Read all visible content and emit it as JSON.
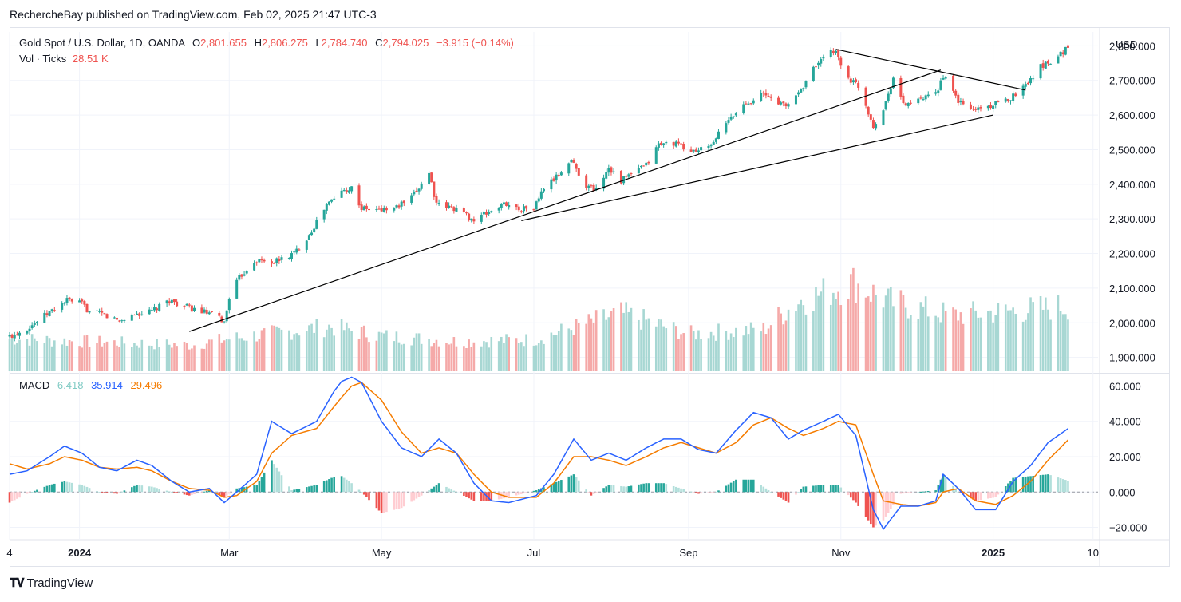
{
  "header": {
    "text": "RechercheBay published on TradingView.com, Feb 02, 2025 21:47 UTC-3"
  },
  "legend": {
    "symbol": "Gold Spot / U.S. Dollar, 1D, OANDA",
    "o_label": "O",
    "o_val": "2,801.655",
    "h_label": "H",
    "h_val": "2,806.275",
    "l_label": "L",
    "l_val": "2,784.740",
    "c_label": "C",
    "c_val": "2,794.025",
    "change": "−3.915 (−0.14%)",
    "vol_label": "Vol · Ticks",
    "vol_val": "28.51 K",
    "macd_label": "MACD",
    "macd_hist": "6.418",
    "macd_line": "35.914",
    "macd_signal": "29.496"
  },
  "currency": "USD",
  "footer": {
    "brand": "TradingView",
    "logo": "tradingview-logo-icon"
  },
  "colors": {
    "up": "#26a69a",
    "down": "#ef5350",
    "macd": "#2962ff",
    "signal": "#f57c00",
    "trendline": "#000000"
  },
  "chart_data": [
    {
      "type": "candlestick",
      "title": "Gold Spot / U.S. Dollar, 1D, OANDA",
      "ylim": [
        1860,
        2840
      ],
      "y_ticks": [
        "2,800.000",
        "2,700.000",
        "2,600.000",
        "2,500.000",
        "2,400.000",
        "2,300.000",
        "2,200.000",
        "2,100.000",
        "2,000.000",
        "1,900.000"
      ],
      "y_tick_values": [
        2800,
        2700,
        2600,
        2500,
        2400,
        2300,
        2200,
        2100,
        2000,
        1900
      ],
      "x_ticks": [
        "4",
        "2024",
        "Mar",
        "May",
        "Jul",
        "Sep",
        "Nov",
        "2025",
        "10"
      ],
      "x_tick_dates": [
        "2023-12-04",
        "2024-01-01",
        "2024-03-01",
        "2024-05-01",
        "2024-07-01",
        "2024-09-01",
        "2024-11-01",
        "2025-01-01",
        "2025-02-10"
      ],
      "x_range": [
        "2023-12-04",
        "2025-02-12"
      ],
      "close_points": [
        [
          "2023-12-04",
          1960
        ],
        [
          "2023-12-11",
          1985
        ],
        [
          "2023-12-18",
          2020
        ],
        [
          "2023-12-27",
          2065
        ],
        [
          "2024-01-02",
          2055
        ],
        [
          "2024-01-05",
          2030
        ],
        [
          "2024-01-10",
          2025
        ],
        [
          "2024-01-17",
          2005
        ],
        [
          "2024-01-23",
          2025
        ],
        [
          "2024-01-29",
          2030
        ],
        [
          "2024-02-02",
          2045
        ],
        [
          "2024-02-06",
          2065
        ],
        [
          "2024-02-13",
          2045
        ],
        [
          "2024-02-20",
          2030
        ],
        [
          "2024-02-26",
          2015
        ],
        [
          "2024-02-28",
          2000
        ],
        [
          "2024-03-01",
          2075
        ],
        [
          "2024-03-05",
          2130
        ],
        [
          "2024-03-11",
          2180
        ],
        [
          "2024-03-19",
          2175
        ],
        [
          "2024-03-27",
          2200
        ],
        [
          "2024-04-02",
          2255
        ],
        [
          "2024-04-09",
          2340
        ],
        [
          "2024-04-15",
          2380
        ],
        [
          "2024-04-19",
          2390
        ],
        [
          "2024-04-23",
          2330
        ],
        [
          "2024-04-29",
          2325
        ],
        [
          "2024-05-06",
          2330
        ],
        [
          "2024-05-13",
          2360
        ],
        [
          "2024-05-20",
          2435
        ],
        [
          "2024-05-23",
          2340
        ],
        [
          "2024-05-31",
          2330
        ],
        [
          "2024-06-07",
          2295
        ],
        [
          "2024-06-13",
          2320
        ],
        [
          "2024-06-20",
          2345
        ],
        [
          "2024-06-24",
          2330
        ],
        [
          "2024-07-01",
          2330
        ],
        [
          "2024-07-05",
          2390
        ],
        [
          "2024-07-10",
          2420
        ],
        [
          "2024-07-16",
          2470
        ],
        [
          "2024-07-22",
          2395
        ],
        [
          "2024-07-26",
          2385
        ],
        [
          "2024-07-31",
          2450
        ],
        [
          "2024-08-05",
          2410
        ],
        [
          "2024-08-09",
          2430
        ],
        [
          "2024-08-15",
          2455
        ],
        [
          "2024-08-20",
          2515
        ],
        [
          "2024-08-26",
          2520
        ],
        [
          "2024-09-02",
          2495
        ],
        [
          "2024-09-09",
          2505
        ],
        [
          "2024-09-16",
          2575
        ],
        [
          "2024-09-23",
          2630
        ],
        [
          "2024-09-30",
          2660
        ],
        [
          "2024-10-04",
          2650
        ],
        [
          "2024-10-10",
          2625
        ],
        [
          "2024-10-16",
          2675
        ],
        [
          "2024-10-22",
          2745
        ],
        [
          "2024-10-30",
          2790
        ],
        [
          "2024-11-01",
          2740
        ],
        [
          "2024-11-05",
          2700
        ],
        [
          "2024-11-08",
          2685
        ],
        [
          "2024-11-14",
          2570
        ],
        [
          "2024-11-18",
          2615
        ],
        [
          "2024-11-22",
          2710
        ],
        [
          "2024-11-26",
          2630
        ],
        [
          "2024-12-02",
          2640
        ],
        [
          "2024-12-09",
          2660
        ],
        [
          "2024-12-12",
          2715
        ],
        [
          "2024-12-18",
          2640
        ],
        [
          "2024-12-23",
          2615
        ],
        [
          "2024-12-30",
          2625
        ],
        [
          "2025-01-06",
          2640
        ],
        [
          "2025-01-13",
          2680
        ],
        [
          "2025-01-20",
          2740
        ],
        [
          "2025-01-27",
          2770
        ],
        [
          "2025-01-31",
          2798
        ]
      ],
      "last": {
        "open": 2801.655,
        "high": 2806.275,
        "low": 2784.74,
        "close": 2794.025
      },
      "annotations": [
        {
          "kind": "trendline",
          "from": [
            "2024-02-14",
            1975
          ],
          "to": [
            "2024-12-11",
            2730
          ]
        },
        {
          "kind": "trendline",
          "from": [
            "2024-06-26",
            2295
          ],
          "to": [
            "2025-01-01",
            2600
          ]
        },
        {
          "kind": "trendline",
          "from": [
            "2024-10-30",
            2790
          ],
          "to": [
            "2025-01-14",
            2672
          ]
        }
      ]
    },
    {
      "type": "bar",
      "title": "Vol · Ticks",
      "last_value": "28.51 K",
      "note": "relative heights",
      "segments": [
        [
          "2023-12-04",
          0.35
        ],
        [
          "2024-01-01",
          0.32
        ],
        [
          "2024-02-15",
          0.28
        ],
        [
          "2024-03-01",
          0.35
        ],
        [
          "2024-04-10",
          0.48
        ],
        [
          "2024-05-01",
          0.38
        ],
        [
          "2024-06-01",
          0.32
        ],
        [
          "2024-07-01",
          0.34
        ],
        [
          "2024-08-05",
          0.62
        ],
        [
          "2024-09-01",
          0.4
        ],
        [
          "2024-10-01",
          0.45
        ],
        [
          "2024-10-15",
          0.75
        ],
        [
          "2024-11-06",
          0.95
        ],
        [
          "2024-11-20",
          0.75
        ],
        [
          "2024-12-15",
          0.6
        ],
        [
          "2025-01-15",
          0.66
        ],
        [
          "2025-02-01",
          0.7
        ]
      ]
    },
    {
      "type": "line",
      "title": "MACD",
      "ylim": [
        -27,
        67
      ],
      "y_ticks": [
        "60.000",
        "40.000",
        "20.000",
        "0.000",
        "−20.000"
      ],
      "y_tick_values": [
        60,
        40,
        20,
        0,
        -20
      ],
      "series": [
        {
          "name": "MACD",
          "points": [
            [
              "2023-12-04",
              10
            ],
            [
              "2023-12-11",
              12
            ],
            [
              "2023-12-20",
              20
            ],
            [
              "2023-12-26",
              26
            ],
            [
              "2024-01-02",
              22
            ],
            [
              "2024-01-09",
              14
            ],
            [
              "2024-01-16",
              12
            ],
            [
              "2024-01-24",
              18
            ],
            [
              "2024-01-30",
              15
            ],
            [
              "2024-02-07",
              6
            ],
            [
              "2024-02-14",
              0
            ],
            [
              "2024-02-22",
              2
            ],
            [
              "2024-02-28",
              -6
            ],
            [
              "2024-03-04",
              0
            ],
            [
              "2024-03-12",
              10
            ],
            [
              "2024-03-18",
              40
            ],
            [
              "2024-03-26",
              33
            ],
            [
              "2024-04-05",
              40
            ],
            [
              "2024-04-14",
              62
            ],
            [
              "2024-04-19",
              65
            ],
            [
              "2024-04-23",
              62
            ],
            [
              "2024-05-01",
              40
            ],
            [
              "2024-05-09",
              25
            ],
            [
              "2024-05-17",
              20
            ],
            [
              "2024-05-24",
              30
            ],
            [
              "2024-05-31",
              22
            ],
            [
              "2024-06-07",
              5
            ],
            [
              "2024-06-14",
              -5
            ],
            [
              "2024-06-21",
              -6
            ],
            [
              "2024-07-02",
              -2
            ],
            [
              "2024-07-09",
              10
            ],
            [
              "2024-07-17",
              30
            ],
            [
              "2024-07-24",
              18
            ],
            [
              "2024-07-31",
              22
            ],
            [
              "2024-08-07",
              18
            ],
            [
              "2024-08-15",
              25
            ],
            [
              "2024-08-22",
              30
            ],
            [
              "2024-08-29",
              30
            ],
            [
              "2024-09-05",
              24
            ],
            [
              "2024-09-12",
              22
            ],
            [
              "2024-09-20",
              35
            ],
            [
              "2024-09-27",
              45
            ],
            [
              "2024-10-04",
              42
            ],
            [
              "2024-10-11",
              30
            ],
            [
              "2024-10-17",
              35
            ],
            [
              "2024-10-25",
              40
            ],
            [
              "2024-10-31",
              44
            ],
            [
              "2024-11-07",
              32
            ],
            [
              "2024-11-14",
              -10
            ],
            [
              "2024-11-18",
              -21
            ],
            [
              "2024-11-25",
              -8
            ],
            [
              "2024-12-02",
              -8
            ],
            [
              "2024-12-09",
              -5
            ],
            [
              "2024-12-12",
              10
            ],
            [
              "2024-12-18",
              2
            ],
            [
              "2024-12-25",
              -10
            ],
            [
              "2025-01-02",
              -10
            ],
            [
              "2025-01-09",
              6
            ],
            [
              "2025-01-16",
              15
            ],
            [
              "2025-01-23",
              28
            ],
            [
              "2025-01-31",
              35.914
            ]
          ]
        },
        {
          "name": "Signal",
          "points": [
            [
              "2023-12-04",
              16
            ],
            [
              "2023-12-11",
              13
            ],
            [
              "2023-12-20",
              16
            ],
            [
              "2023-12-26",
              20
            ],
            [
              "2024-01-02",
              18
            ],
            [
              "2024-01-09",
              14
            ],
            [
              "2024-01-16",
              13
            ],
            [
              "2024-01-24",
              14
            ],
            [
              "2024-01-30",
              12
            ],
            [
              "2024-02-07",
              6
            ],
            [
              "2024-02-14",
              2
            ],
            [
              "2024-02-22",
              1
            ],
            [
              "2024-02-28",
              -3
            ],
            [
              "2024-03-04",
              -2
            ],
            [
              "2024-03-12",
              6
            ],
            [
              "2024-03-18",
              22
            ],
            [
              "2024-03-26",
              32
            ],
            [
              "2024-04-05",
              36
            ],
            [
              "2024-04-14",
              52
            ],
            [
              "2024-04-19",
              60
            ],
            [
              "2024-04-23",
              62
            ],
            [
              "2024-05-01",
              52
            ],
            [
              "2024-05-09",
              34
            ],
            [
              "2024-05-17",
              22
            ],
            [
              "2024-05-24",
              25
            ],
            [
              "2024-05-31",
              22
            ],
            [
              "2024-06-07",
              10
            ],
            [
              "2024-06-14",
              0
            ],
            [
              "2024-06-21",
              -3
            ],
            [
              "2024-07-02",
              -3
            ],
            [
              "2024-07-09",
              5
            ],
            [
              "2024-07-17",
              20
            ],
            [
              "2024-07-24",
              20
            ],
            [
              "2024-07-31",
              18
            ],
            [
              "2024-08-07",
              15
            ],
            [
              "2024-08-15",
              20
            ],
            [
              "2024-08-22",
              25
            ],
            [
              "2024-08-29",
              28
            ],
            [
              "2024-09-05",
              25
            ],
            [
              "2024-09-12",
              22
            ],
            [
              "2024-09-20",
              28
            ],
            [
              "2024-09-27",
              38
            ],
            [
              "2024-10-04",
              42
            ],
            [
              "2024-10-11",
              36
            ],
            [
              "2024-10-17",
              32
            ],
            [
              "2024-10-25",
              36
            ],
            [
              "2024-10-31",
              40
            ],
            [
              "2024-11-07",
              38
            ],
            [
              "2024-11-14",
              10
            ],
            [
              "2024-11-18",
              -5
            ],
            [
              "2024-11-25",
              -7
            ],
            [
              "2024-12-02",
              -8
            ],
            [
              "2024-12-09",
              -6
            ],
            [
              "2024-12-12",
              0
            ],
            [
              "2024-12-18",
              2
            ],
            [
              "2024-12-25",
              -5
            ],
            [
              "2025-01-02",
              -7
            ],
            [
              "2025-01-09",
              -2
            ],
            [
              "2025-01-16",
              6
            ],
            [
              "2025-01-23",
              18
            ],
            [
              "2025-01-31",
              29.496
            ]
          ]
        }
      ],
      "histogram_last": 6.418
    }
  ]
}
